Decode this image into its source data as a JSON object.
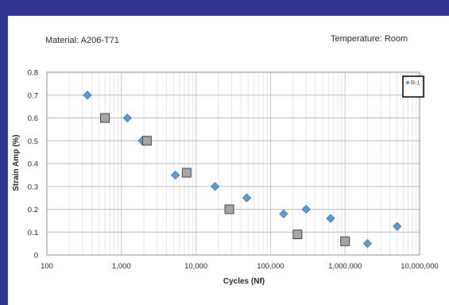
{
  "header": {
    "material": "Material: A206-T71",
    "temperature": "Temperature: Room"
  },
  "chart_data": {
    "type": "scatter",
    "xscale": "log",
    "xlim": [
      100,
      10000000
    ],
    "ylim": [
      0,
      0.8
    ],
    "xlabel": "Cycles (Nf)",
    "ylabel": "Strain Amp (%)",
    "x_ticks": [
      "100",
      "1,000",
      "10,000",
      "100,000",
      "1,000,000",
      "10,000,000"
    ],
    "y_ticks": [
      "0",
      "0.1",
      "0.2",
      "0.3",
      "0.4",
      "0.5",
      "0.6",
      "0.7",
      "0.8"
    ],
    "grid": true,
    "legend_position": "top-right",
    "series": [
      {
        "name": "R-1",
        "marker": "diamond",
        "color": "#5b9bd5",
        "points": [
          {
            "x": 350,
            "y": 0.7
          },
          {
            "x": 1200,
            "y": 0.6
          },
          {
            "x": 1900,
            "y": 0.5
          },
          {
            "x": 5300,
            "y": 0.35
          },
          {
            "x": 18000,
            "y": 0.3
          },
          {
            "x": 48000,
            "y": 0.25
          },
          {
            "x": 150000,
            "y": 0.18
          },
          {
            "x": 300000,
            "y": 0.2
          },
          {
            "x": 640000,
            "y": 0.16
          },
          {
            "x": 2000000,
            "y": 0.05
          },
          {
            "x": 5000000,
            "y": 0.125
          }
        ]
      },
      {
        "marker": "square",
        "color": "#a6a6a6",
        "points": [
          {
            "x": 600,
            "y": 0.6
          },
          {
            "x": 2200,
            "y": 0.5
          },
          {
            "x": 7500,
            "y": 0.36
          },
          {
            "x": 28000,
            "y": 0.2
          },
          {
            "x": 230000,
            "y": 0.09
          },
          {
            "x": 1000000,
            "y": 0.06
          }
        ]
      }
    ]
  }
}
